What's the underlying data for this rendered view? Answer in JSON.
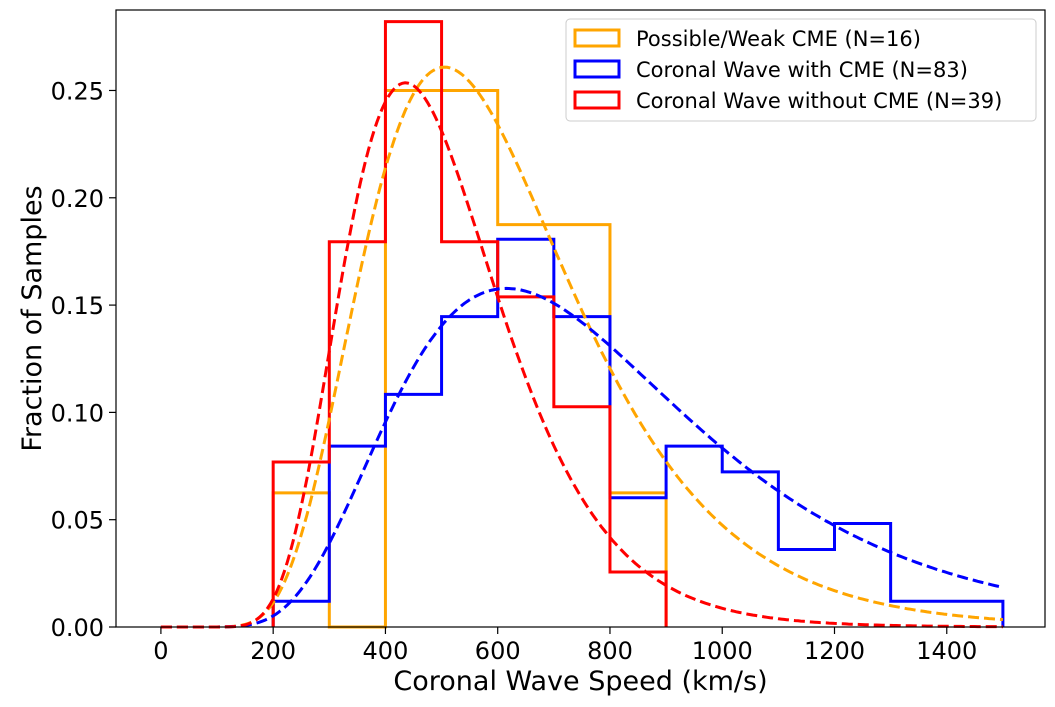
{
  "chart_data": {
    "type": "histogram",
    "title": "",
    "xlabel": "Coronal Wave Speed (km/s)",
    "ylabel": "Fraction of Samples",
    "xlim": [
      -80,
      1575
    ],
    "ylim": [
      0,
      0.2875
    ],
    "xticks": [
      0,
      200,
      400,
      600,
      800,
      1000,
      1200,
      1400
    ],
    "xtick_labels": [
      "0",
      "200",
      "400",
      "600",
      "800",
      "1000",
      "1200",
      "1400"
    ],
    "yticks": [
      0.0,
      0.05,
      0.1,
      0.15,
      0.2,
      0.25
    ],
    "ytick_labels": [
      "0.00",
      "0.05",
      "0.10",
      "0.15",
      "0.20",
      "0.25"
    ],
    "grid": false,
    "legend_position": "top-right",
    "series": [
      {
        "name": "Possible/Weak CME (N=16)",
        "color": "#FFA500",
        "bin_edges": [
          200,
          300,
          400,
          500,
          600,
          700,
          800,
          900
        ],
        "values": [
          0.0625,
          0.0,
          0.25,
          0.25,
          0.1875,
          0.1875,
          0.0625
        ],
        "fit": {
          "type": "lognormal",
          "peak_x": 490,
          "peak_y": 0.26,
          "mu": 6.3616,
          "sigma": 0.37,
          "x_range": [
            0,
            1500
          ]
        }
      },
      {
        "name": "Coronal Wave with CME (N=83)",
        "color": "#0000FF",
        "bin_edges": [
          200,
          300,
          400,
          500,
          600,
          700,
          800,
          900,
          1000,
          1100,
          1200,
          1300,
          1400,
          1500
        ],
        "values": [
          0.012,
          0.0843,
          0.1084,
          0.1446,
          0.1807,
          0.1446,
          0.0602,
          0.0843,
          0.0723,
          0.0361,
          0.0482,
          0.012,
          0.012
        ],
        "fit": {
          "type": "lognormal",
          "peak_x": 590,
          "peak_y": 0.157,
          "mu": 6.6072,
          "sigma": 0.43,
          "x_range": [
            0,
            1500
          ]
        }
      },
      {
        "name": "Coronal Wave without CME (N=39)",
        "color": "#FF0000",
        "bin_edges": [
          200,
          300,
          400,
          500,
          600,
          700,
          800,
          900
        ],
        "values": [
          0.0769,
          0.1795,
          0.2821,
          0.1795,
          0.1538,
          0.1026,
          0.0256
        ],
        "fit": {
          "type": "lognormal",
          "peak_x": 445,
          "peak_y": 0.253,
          "mu": 6.1792,
          "sigma": 0.32,
          "x_range": [
            0,
            1500
          ]
        }
      }
    ]
  }
}
